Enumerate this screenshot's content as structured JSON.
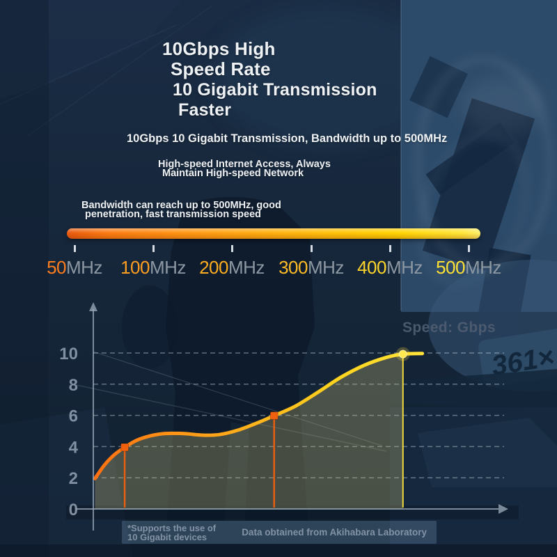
{
  "hero": {
    "title_line1": "10Gbps High",
    "title_line2": "Speed Rate",
    "subtitle_line1": "10 Gigabit Transmission",
    "subtitle_line2": "Faster",
    "tagline": "10Gbps 10 Gigabit Transmission, Bandwidth up to 500MHz",
    "benefit_line1": "High-speed Internet Access, Always",
    "benefit_line2": "Maintain High-speed Network",
    "bandwidth_line1": "Bandwidth can reach up to 500MHz, good",
    "bandwidth_line2": "penetration, fast transmission speed"
  },
  "frequency_scale": {
    "unit_color": "#8d98a3",
    "bar_gradient": [
      "#e95a0e",
      "#fb7c12 10%",
      "#ff9a13 32%",
      "#ffb80d 56%",
      "#ffd400 80%",
      "#ffe53a 96%",
      "#ffef6a"
    ],
    "labels": [
      {
        "value": "50",
        "unit": "MHz",
        "color": "#ff7d1f"
      },
      {
        "value": "100",
        "unit": "MHz",
        "color": "#ff9d22"
      },
      {
        "value": "200",
        "unit": "MHz",
        "color": "#ffae20"
      },
      {
        "value": "300",
        "unit": "MHz",
        "color": "#ffbc26"
      },
      {
        "value": "400",
        "unit": "MHz",
        "color": "#ffd42b"
      },
      {
        "value": "500",
        "unit": "MHz",
        "color": "#ffe135"
      }
    ]
  },
  "chart_data": {
    "type": "area",
    "title": "Speed: Gbps",
    "ylabel": "Speed (Gbps)",
    "xlabel": "",
    "ylim": [
      0,
      10
    ],
    "y_ticks": [
      0,
      2,
      4,
      6,
      8,
      10
    ],
    "grid": true,
    "legend": false,
    "area_fill": "rgba(205,193,122,0.30)",
    "line_gradient": [
      "#ff6f12",
      "#ff9517",
      "#ffb51c",
      "#ffd51f",
      "#ffe339"
    ],
    "series": [
      {
        "name": "Speed",
        "points": [
          [
            0.004,
            1.95
          ],
          [
            0.028,
            2.85
          ],
          [
            0.052,
            3.5
          ],
          [
            0.076,
            3.95
          ],
          [
            0.105,
            4.4
          ],
          [
            0.14,
            4.7
          ],
          [
            0.175,
            4.84
          ],
          [
            0.22,
            4.83
          ],
          [
            0.265,
            4.73
          ],
          [
            0.305,
            4.77
          ],
          [
            0.35,
            5.05
          ],
          [
            0.4,
            5.55
          ],
          [
            0.438,
            5.98
          ],
          [
            0.49,
            6.6
          ],
          [
            0.545,
            7.5
          ],
          [
            0.6,
            8.45
          ],
          [
            0.655,
            9.2
          ],
          [
            0.71,
            9.72
          ],
          [
            0.75,
            9.93
          ],
          [
            0.797,
            9.97
          ]
        ]
      }
    ],
    "markers": [
      {
        "t": 0.076,
        "value": 3.95,
        "color": "#f0600f",
        "shape": "square"
      },
      {
        "t": 0.438,
        "value": 5.98,
        "color": "#f0600f",
        "shape": "square"
      },
      {
        "t": 0.75,
        "value": 9.93,
        "color": "#ffe23c",
        "shape": "circle"
      }
    ],
    "axis_color": "#9fafbe",
    "grid_color": "rgba(212,222,232,0.5)",
    "tick_label_color": "#8a99ab"
  },
  "footnotes": {
    "left_line1": "*Supports the use of",
    "left_line2": "10 Gigabit devices",
    "right": "Data obtained from Akihabara Laboratory"
  },
  "background": {
    "watermark_text": "361×"
  }
}
